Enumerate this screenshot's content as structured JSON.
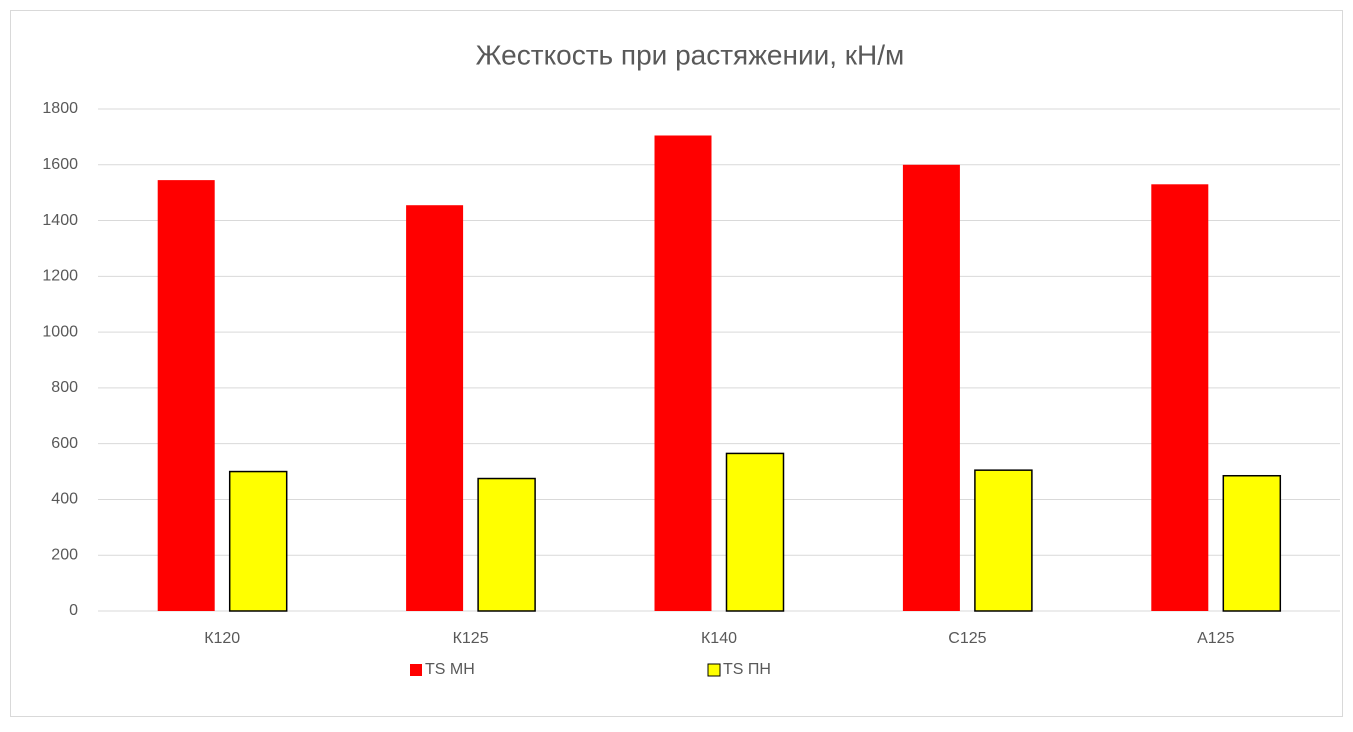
{
  "chart_data": {
    "type": "bar",
    "title": "Жесткость при растяжении, кН/м",
    "categories": [
      "К120",
      "К125",
      "К140",
      "С125",
      "А125"
    ],
    "series": [
      {
        "name": "TS МН",
        "color": "#ff0000",
        "values": [
          1545,
          1455,
          1705,
          1600,
          1530
        ]
      },
      {
        "name": "TS ПН",
        "color": "#ffff00",
        "values": [
          500,
          475,
          565,
          505,
          485
        ]
      }
    ],
    "ylim": [
      0,
      1800
    ],
    "yticks": [
      0,
      200,
      400,
      600,
      800,
      1000,
      1200,
      1400,
      1600,
      1800
    ],
    "grid": true,
    "legend": "bottom"
  }
}
